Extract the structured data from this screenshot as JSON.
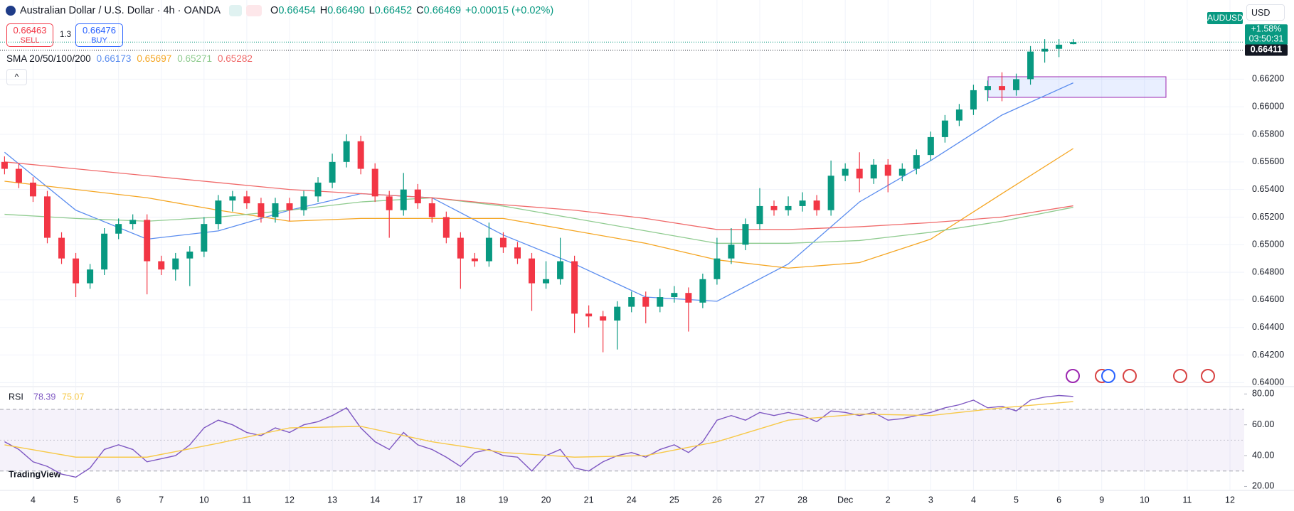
{
  "header": {
    "symbol": "Australian Dollar / U.S. Dollar · 4h · OANDA",
    "o_label": "O",
    "open": "0.66454",
    "h_label": "H",
    "high": "0.66490",
    "l_label": "L",
    "low": "0.66452",
    "c_label": "C",
    "close": "0.66469",
    "change": "+0.00015 (+0.02%)"
  },
  "trade": {
    "sell_price": "0.66463",
    "sell": "SELL",
    "spread": "1.3",
    "buy_price": "0.66476",
    "buy": "BUY"
  },
  "ticker": "AUDUSD",
  "currency": "USD",
  "logo": "TradingView",
  "chart_data": [
    {
      "type": "candlestick",
      "indicator": "SMA 20/50/100/200",
      "up_color": "#089981",
      "down_color": "#f23645",
      "grid": true,
      "open": [
        0.656,
        0.6555,
        0.6545,
        0.6535,
        0.6505,
        0.649,
        0.6472,
        0.6482,
        0.6508,
        0.6515,
        0.6518,
        0.6488,
        0.6482,
        0.649,
        0.6495,
        0.6515,
        0.6532,
        0.6535,
        0.653,
        0.652,
        0.653,
        0.6525,
        0.6535,
        0.6545,
        0.656,
        0.6575,
        0.6555,
        0.6535,
        0.6525,
        0.654,
        0.653,
        0.652,
        0.6505,
        0.649,
        0.6488,
        0.6505,
        0.6498,
        0.649,
        0.6472,
        0.6475,
        0.6488,
        0.645,
        0.6448,
        0.6445,
        0.6455,
        0.6462,
        0.6455,
        0.6462,
        0.6465,
        0.6458,
        0.6475,
        0.649,
        0.65,
        0.6515,
        0.6528,
        0.6525,
        0.6528,
        0.6532,
        0.6525,
        0.655,
        0.6555,
        0.6548,
        0.6558,
        0.655,
        0.6555,
        0.6565,
        0.6578,
        0.659,
        0.6598,
        0.6612,
        0.6615,
        0.6612,
        0.662,
        0.664,
        0.6642,
        0.66454
      ],
      "high": [
        0.6564,
        0.6559,
        0.6549,
        0.6539,
        0.6509,
        0.6494,
        0.6486,
        0.6512,
        0.6519,
        0.6522,
        0.6522,
        0.6492,
        0.6494,
        0.6499,
        0.652,
        0.6536,
        0.6539,
        0.6539,
        0.6534,
        0.6534,
        0.6534,
        0.6539,
        0.6549,
        0.6566,
        0.658,
        0.6579,
        0.6559,
        0.6539,
        0.6552,
        0.6544,
        0.6534,
        0.6524,
        0.6509,
        0.6494,
        0.6516,
        0.6509,
        0.6502,
        0.6494,
        0.6488,
        0.6505,
        0.6492,
        0.6456,
        0.6452,
        0.6459,
        0.6466,
        0.6466,
        0.6468,
        0.647,
        0.6469,
        0.6479,
        0.6505,
        0.6512,
        0.6519,
        0.6541,
        0.6532,
        0.6535,
        0.6538,
        0.6536,
        0.6561,
        0.6559,
        0.6567,
        0.6562,
        0.6562,
        0.6559,
        0.6569,
        0.6582,
        0.6594,
        0.6602,
        0.6616,
        0.6619,
        0.6625,
        0.6624,
        0.6644,
        0.6649,
        0.6649,
        0.6649
      ],
      "low": [
        0.6551,
        0.6541,
        0.6531,
        0.6501,
        0.6486,
        0.6462,
        0.6468,
        0.6478,
        0.6504,
        0.6511,
        0.6464,
        0.6478,
        0.6474,
        0.647,
        0.6491,
        0.6511,
        0.6524,
        0.6526,
        0.6516,
        0.6516,
        0.6517,
        0.6521,
        0.6531,
        0.6541,
        0.6556,
        0.6551,
        0.6531,
        0.6505,
        0.6521,
        0.6526,
        0.6516,
        0.6501,
        0.6468,
        0.6484,
        0.6484,
        0.6494,
        0.6486,
        0.6452,
        0.6468,
        0.6471,
        0.6436,
        0.644,
        0.6422,
        0.6424,
        0.6451,
        0.6443,
        0.6451,
        0.6458,
        0.6437,
        0.6454,
        0.6471,
        0.6486,
        0.6496,
        0.6511,
        0.6521,
        0.6521,
        0.6524,
        0.6521,
        0.6521,
        0.6546,
        0.6538,
        0.6544,
        0.6538,
        0.6546,
        0.6551,
        0.6561,
        0.6574,
        0.6586,
        0.6594,
        0.6604,
        0.6604,
        0.6608,
        0.6616,
        0.6632,
        0.6636,
        0.66452
      ],
      "close": [
        0.6555,
        0.6545,
        0.6535,
        0.6505,
        0.649,
        0.6472,
        0.6482,
        0.6508,
        0.6515,
        0.6518,
        0.6488,
        0.6482,
        0.649,
        0.6495,
        0.6515,
        0.6532,
        0.6535,
        0.653,
        0.652,
        0.653,
        0.6525,
        0.6535,
        0.6545,
        0.656,
        0.6575,
        0.6555,
        0.6535,
        0.6525,
        0.654,
        0.653,
        0.652,
        0.6505,
        0.649,
        0.6488,
        0.6505,
        0.6498,
        0.649,
        0.6472,
        0.6475,
        0.6488,
        0.645,
        0.6448,
        0.6445,
        0.6455,
        0.6462,
        0.6455,
        0.6462,
        0.6465,
        0.6458,
        0.6475,
        0.649,
        0.65,
        0.6515,
        0.6528,
        0.6525,
        0.6528,
        0.6532,
        0.6525,
        0.655,
        0.6555,
        0.6548,
        0.6558,
        0.655,
        0.6555,
        0.6565,
        0.6578,
        0.659,
        0.6598,
        0.6612,
        0.6615,
        0.6612,
        0.662,
        0.664,
        0.6642,
        0.6645,
        0.66469
      ],
      "sma_x": [
        0,
        5,
        10,
        15,
        20,
        25,
        30,
        35,
        40,
        45,
        50,
        55,
        60,
        65,
        70,
        75
      ],
      "series": [
        {
          "color": "#5b8def",
          "values": [
            0.6567,
            0.6525,
            0.6504,
            0.651,
            0.6525,
            0.6537,
            0.6534,
            0.6507,
            0.6486,
            0.6462,
            0.6459,
            0.6486,
            0.6531,
            0.6561,
            0.6594,
            0.66173
          ]
        },
        {
          "color": "#f5a623",
          "values": [
            0.6546,
            0.654,
            0.6534,
            0.6525,
            0.6517,
            0.6519,
            0.6519,
            0.6519,
            0.651,
            0.6501,
            0.6489,
            0.6483,
            0.6487,
            0.6504,
            0.6537,
            0.65697
          ]
        },
        {
          "color": "#8fcb8f",
          "values": [
            0.6522,
            0.6519,
            0.6517,
            0.652,
            0.6525,
            0.6531,
            0.6534,
            0.6528,
            0.6519,
            0.651,
            0.6501,
            0.6501,
            0.6503,
            0.6509,
            0.6517,
            0.65271
          ]
        },
        {
          "color": "#f06a6a",
          "values": [
            0.656,
            0.6555,
            0.655,
            0.6545,
            0.654,
            0.6537,
            0.6534,
            0.6529,
            0.6525,
            0.6519,
            0.6511,
            0.6511,
            0.6513,
            0.6516,
            0.652,
            0.65282
          ]
        }
      ],
      "xlim": [
        -0.32,
        87
      ],
      "xticks": [
        {
          "value": 2,
          "label": "4"
        },
        {
          "value": 5,
          "label": "5"
        },
        {
          "value": 8,
          "label": "6"
        },
        {
          "value": 11,
          "label": "7"
        },
        {
          "value": 14,
          "label": "10"
        },
        {
          "value": 17,
          "label": "11"
        },
        {
          "value": 20,
          "label": "12"
        },
        {
          "value": 23,
          "label": "13"
        },
        {
          "value": 26,
          "label": "14"
        },
        {
          "value": 29,
          "label": "17"
        },
        {
          "value": 32,
          "label": "18"
        },
        {
          "value": 35,
          "label": "19"
        },
        {
          "value": 38,
          "label": "20"
        },
        {
          "value": 41,
          "label": "21"
        },
        {
          "value": 44,
          "label": "24"
        },
        {
          "value": 47,
          "label": "25"
        },
        {
          "value": 50,
          "label": "26"
        },
        {
          "value": 53,
          "label": "27"
        },
        {
          "value": 56,
          "label": "28"
        },
        {
          "value": 59,
          "label": "Dec"
        },
        {
          "value": 62,
          "label": "2"
        },
        {
          "value": 65,
          "label": "3"
        },
        {
          "value": 68,
          "label": "4"
        },
        {
          "value": 71,
          "label": "5"
        },
        {
          "value": 74,
          "label": "6"
        },
        {
          "value": 77,
          "label": "9"
        },
        {
          "value": 80,
          "label": "10"
        },
        {
          "value": 83,
          "label": "11"
        },
        {
          "value": 86,
          "label": "12"
        }
      ],
      "ylim": [
        0.63976,
        0.66774
      ],
      "yticks": [
        {
          "value": 0.64,
          "label": "0.64000"
        },
        {
          "value": 0.642,
          "label": "0.64200"
        },
        {
          "value": 0.644,
          "label": "0.64400"
        },
        {
          "value": 0.646,
          "label": "0.64600"
        },
        {
          "value": 0.648,
          "label": "0.64800"
        },
        {
          "value": 0.65,
          "label": "0.65000"
        },
        {
          "value": 0.652,
          "label": "0.65200"
        },
        {
          "value": 0.654,
          "label": "0.65400"
        },
        {
          "value": 0.656,
          "label": "0.65600"
        },
        {
          "value": 0.658,
          "label": "0.65800"
        },
        {
          "value": 0.66,
          "label": "0.66000"
        },
        {
          "value": 0.662,
          "label": "0.66200"
        }
      ],
      "price_line": {
        "value": 0.66411,
        "label": "0.66411"
      },
      "last_tag": {
        "change": "+1.58%",
        "countdown": "03:50:31"
      }
    },
    {
      "type": "line",
      "title": "RSI",
      "levels": [
        70,
        50,
        30
      ],
      "series": [
        {
          "color": "#7e57c2",
          "values": [
            49,
            44,
            36,
            33,
            28,
            26,
            32,
            44,
            47,
            44,
            36,
            38,
            40,
            47,
            58,
            63,
            60,
            55,
            53,
            58,
            55,
            60,
            62,
            66,
            71,
            58,
            49,
            44,
            55,
            47,
            44,
            39,
            33,
            42,
            44,
            40,
            39,
            30,
            40,
            44,
            32,
            30,
            36,
            40,
            42,
            39,
            44,
            47,
            42,
            49,
            63,
            66,
            63,
            68,
            66,
            68,
            66,
            62,
            69,
            68,
            66,
            68,
            63,
            64,
            66,
            68,
            71,
            73,
            76,
            71,
            72,
            69,
            76,
            78,
            79,
            78.39
          ]
        },
        {
          "color": "#f7c948",
          "x": [
            0,
            5,
            10,
            15,
            20,
            25,
            30,
            35,
            40,
            45,
            50,
            55,
            60,
            65,
            70,
            75
          ],
          "values": [
            47,
            39,
            39,
            48,
            58,
            59,
            49,
            42,
            39,
            40,
            49,
            63,
            67,
            66,
            71,
            75.07
          ]
        }
      ],
      "ylim": [
        17.9,
        84.3
      ],
      "yticks": [
        {
          "value": 80,
          "label": "80.00"
        },
        {
          "value": 60,
          "label": "60.00"
        },
        {
          "value": 40,
          "label": "40.00"
        },
        {
          "value": 20,
          "label": "20.00"
        }
      ]
    }
  ]
}
